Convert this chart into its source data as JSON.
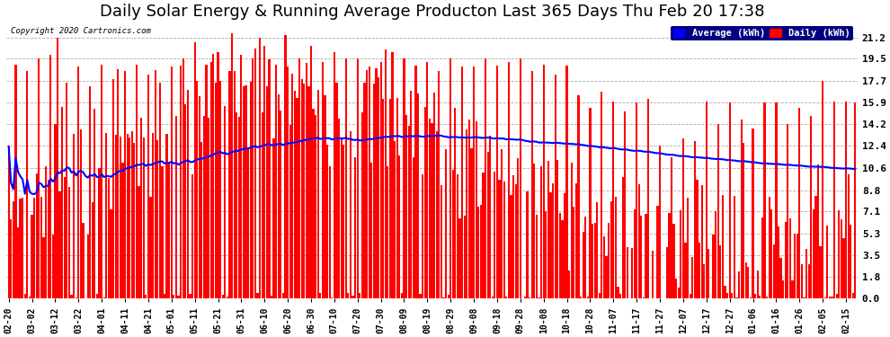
{
  "title": "Daily Solar Energy & Running Average Producton Last 365 Days Thu Feb 20 17:38",
  "copyright": "Copyright 2020 Cartronics.com",
  "legend_avg": "Average (kWh)",
  "legend_daily": "Daily (kWh)",
  "bar_color": "#ff0000",
  "avg_line_color": "#0000ff",
  "background_color": "#ffffff",
  "plot_bg_color": "#ffffff",
  "grid_color": "#999999",
  "yticks": [
    0.0,
    1.8,
    3.5,
    5.3,
    7.1,
    8.8,
    10.6,
    12.4,
    14.2,
    15.9,
    17.7,
    19.5,
    21.2
  ],
  "ylim": [
    0.0,
    22.5
  ],
  "title_fontsize": 13,
  "tick_fontsize": 8,
  "n_days": 365
}
